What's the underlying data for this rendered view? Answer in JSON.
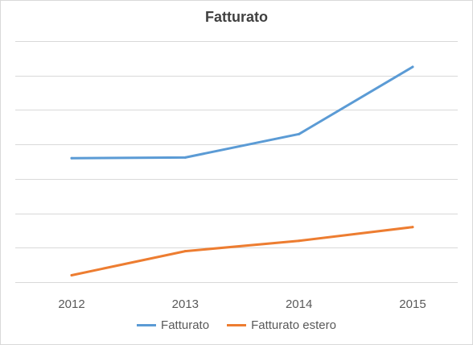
{
  "chart_data": {
    "type": "line",
    "title": "Fatturato",
    "categories": [
      "2012",
      "2013",
      "2014",
      "2015"
    ],
    "series": [
      {
        "name": "Fatturato",
        "values": [
          36.0,
          36.2,
          43.0,
          62.5
        ],
        "color": "#5b9bd5"
      },
      {
        "name": "Fatturato estero",
        "values": [
          2.0,
          9.0,
          12.0,
          16.0
        ],
        "color": "#ed7d31"
      }
    ],
    "ylim": [
      0,
      70
    ],
    "gridlines": true,
    "y_tick_labels_shown": false,
    "legend_position": "bottom",
    "gridline_color": "#d9d9d9"
  }
}
